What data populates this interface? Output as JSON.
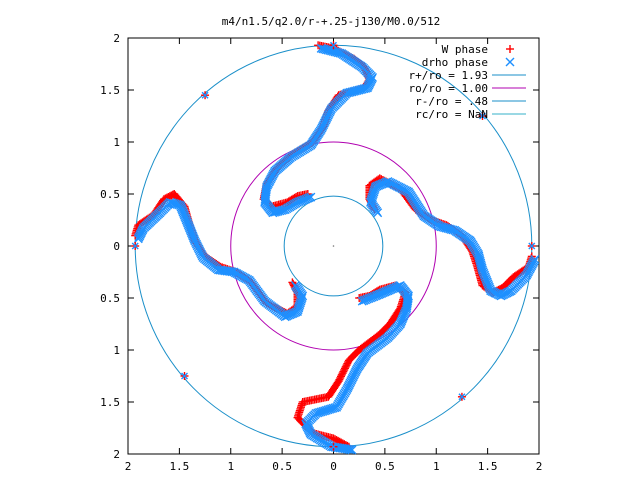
{
  "chart_data": {
    "type": "scatter",
    "title": "m4/n1.5/q2.0/r-+.25-j130/M0.0/512",
    "xlim": [
      -2,
      2
    ],
    "ylim": [
      -2,
      2
    ],
    "x_ticks": [
      -2,
      -1.5,
      -1,
      -0.5,
      0,
      0.5,
      1,
      1.5,
      2
    ],
    "y_ticks": [
      -2,
      -1.5,
      -1,
      -0.5,
      0,
      0.5,
      1,
      1.5,
      2
    ],
    "x_tick_labels": [
      "2",
      "1.5",
      "1",
      "0.5",
      "0",
      "0.5",
      "1",
      "1.5",
      "2"
    ],
    "y_tick_labels": [
      "2",
      "1.5",
      "1",
      "0.5",
      "0",
      "0.5",
      "1",
      "1.5",
      "2"
    ],
    "legend_position": "top-right",
    "series": [
      {
        "name": "W phase",
        "marker": "+",
        "color": "#ff0000"
      },
      {
        "name": "drho phase",
        "marker": "x",
        "color": "#1e90ff"
      }
    ],
    "curves": [
      {
        "name": "r+/ro = 1.93",
        "radius": 1.93,
        "color": "#1a8fc9"
      },
      {
        "name": "ro/ro = 1.00",
        "radius": 1.0,
        "color": "#b000b0"
      },
      {
        "name": "r-/ro = .48",
        "radius": 0.48,
        "color": "#1a8fc9"
      },
      {
        "name": "rc/ro = NaN",
        "radius": null,
        "color": "#36b0c9"
      }
    ],
    "arms_W": [
      [
        [
          -0.15,
          1.93
        ],
        [
          0.0,
          1.9
        ],
        [
          0.2,
          1.8
        ],
        [
          0.3,
          1.72
        ],
        [
          0.35,
          1.6
        ],
        [
          0.3,
          1.52
        ],
        [
          0.05,
          1.45
        ],
        [
          -0.05,
          1.3
        ],
        [
          -0.1,
          1.15
        ],
        [
          -0.2,
          1.0
        ],
        [
          -0.4,
          0.88
        ],
        [
          -0.55,
          0.75
        ],
        [
          -0.65,
          0.6
        ],
        [
          -0.68,
          0.45
        ],
        [
          -0.6,
          0.38
        ],
        [
          -0.45,
          0.42
        ],
        [
          -0.35,
          0.48
        ],
        [
          -0.25,
          0.5
        ]
      ],
      [
        [
          1.93,
          -0.1
        ],
        [
          1.9,
          -0.2
        ],
        [
          1.75,
          -0.3
        ],
        [
          1.65,
          -0.4
        ],
        [
          1.55,
          -0.45
        ],
        [
          1.45,
          -0.38
        ],
        [
          1.4,
          -0.2
        ],
        [
          1.35,
          -0.05
        ],
        [
          1.25,
          0.1
        ],
        [
          1.1,
          0.2
        ],
        [
          0.95,
          0.25
        ],
        [
          0.8,
          0.35
        ],
        [
          0.65,
          0.55
        ],
        [
          0.45,
          0.65
        ],
        [
          0.35,
          0.58
        ],
        [
          0.35,
          0.45
        ],
        [
          0.4,
          0.35
        ]
      ],
      [
        [
          0.15,
          -1.93
        ],
        [
          0.0,
          -1.85
        ],
        [
          -0.2,
          -1.8
        ],
        [
          -0.35,
          -1.65
        ],
        [
          -0.3,
          -1.5
        ],
        [
          -0.05,
          -1.45
        ],
        [
          0.05,
          -1.3
        ],
        [
          0.15,
          -1.1
        ],
        [
          0.25,
          -1.0
        ],
        [
          0.45,
          -0.85
        ],
        [
          0.55,
          -0.75
        ],
        [
          0.65,
          -0.6
        ],
        [
          0.7,
          -0.45
        ],
        [
          0.6,
          -0.38
        ],
        [
          0.45,
          -0.42
        ],
        [
          0.35,
          -0.48
        ],
        [
          0.25,
          -0.5
        ]
      ],
      [
        [
          -1.93,
          0.1
        ],
        [
          -1.9,
          0.2
        ],
        [
          -1.75,
          0.3
        ],
        [
          -1.65,
          0.45
        ],
        [
          -1.55,
          0.5
        ],
        [
          -1.45,
          0.38
        ],
        [
          -1.4,
          0.2
        ],
        [
          -1.35,
          0.05
        ],
        [
          -1.25,
          -0.1
        ],
        [
          -1.1,
          -0.2
        ],
        [
          -0.95,
          -0.25
        ],
        [
          -0.8,
          -0.35
        ],
        [
          -0.65,
          -0.55
        ],
        [
          -0.45,
          -0.65
        ],
        [
          -0.35,
          -0.58
        ],
        [
          -0.35,
          -0.45
        ],
        [
          -0.4,
          -0.35
        ]
      ]
    ],
    "arms_drho": [
      [
        [
          -0.15,
          1.93
        ],
        [
          0.05,
          1.88
        ],
        [
          0.25,
          1.75
        ],
        [
          0.35,
          1.65
        ],
        [
          0.3,
          1.55
        ],
        [
          0.1,
          1.5
        ],
        [
          -0.05,
          1.35
        ],
        [
          -0.15,
          1.15
        ],
        [
          -0.25,
          1.0
        ],
        [
          -0.45,
          0.88
        ],
        [
          -0.6,
          0.75
        ],
        [
          -0.68,
          0.6
        ],
        [
          -0.7,
          0.45
        ],
        [
          -0.62,
          0.35
        ],
        [
          -0.5,
          0.38
        ],
        [
          -0.38,
          0.45
        ],
        [
          -0.25,
          0.5
        ]
      ],
      [
        [
          1.93,
          -0.1
        ],
        [
          1.85,
          -0.25
        ],
        [
          1.7,
          -0.4
        ],
        [
          1.6,
          -0.45
        ],
        [
          1.5,
          -0.4
        ],
        [
          1.42,
          -0.2
        ],
        [
          1.38,
          -0.05
        ],
        [
          1.3,
          0.08
        ],
        [
          1.15,
          0.18
        ],
        [
          1.0,
          0.22
        ],
        [
          0.85,
          0.32
        ],
        [
          0.7,
          0.55
        ],
        [
          0.5,
          0.65
        ],
        [
          0.38,
          0.6
        ],
        [
          0.33,
          0.45
        ],
        [
          0.4,
          0.35
        ]
      ],
      [
        [
          0.15,
          -1.93
        ],
        [
          -0.05,
          -1.9
        ],
        [
          -0.25,
          -1.78
        ],
        [
          -0.3,
          -1.68
        ],
        [
          -0.2,
          -1.58
        ],
        [
          0.0,
          -1.52
        ],
        [
          0.1,
          -1.35
        ],
        [
          0.2,
          -1.15
        ],
        [
          0.3,
          -1.0
        ],
        [
          0.5,
          -0.85
        ],
        [
          0.62,
          -0.72
        ],
        [
          0.68,
          -0.58
        ],
        [
          0.7,
          -0.45
        ],
        [
          0.62,
          -0.35
        ],
        [
          0.5,
          -0.4
        ],
        [
          0.38,
          -0.45
        ],
        [
          0.25,
          -0.5
        ]
      ],
      [
        [
          -1.93,
          0.1
        ],
        [
          -1.88,
          0.2
        ],
        [
          -1.72,
          0.35
        ],
        [
          -1.62,
          0.45
        ],
        [
          -1.52,
          0.42
        ],
        [
          -1.45,
          0.25
        ],
        [
          -1.38,
          0.08
        ],
        [
          -1.3,
          -0.08
        ],
        [
          -1.15,
          -0.2
        ],
        [
          -1.0,
          -0.22
        ],
        [
          -0.85,
          -0.3
        ],
        [
          -0.7,
          -0.5
        ],
        [
          -0.5,
          -0.65
        ],
        [
          -0.38,
          -0.6
        ],
        [
          -0.33,
          -0.45
        ],
        [
          -0.4,
          -0.35
        ]
      ]
    ],
    "outer_markers": [
      {
        "x": -1.25,
        "y": 1.45,
        "marker": "both"
      },
      {
        "x": 1.45,
        "y": 1.25,
        "marker": "both"
      },
      {
        "x": -1.45,
        "y": -1.25,
        "marker": "both"
      },
      {
        "x": 1.25,
        "y": -1.45,
        "marker": "both"
      },
      {
        "x": 1.93,
        "y": 0.0,
        "marker": "both"
      },
      {
        "x": -1.93,
        "y": 0.0,
        "marker": "both"
      },
      {
        "x": 0.0,
        "y": 1.93,
        "marker": "both"
      },
      {
        "x": 0.0,
        "y": -1.93,
        "marker": "both"
      }
    ]
  }
}
